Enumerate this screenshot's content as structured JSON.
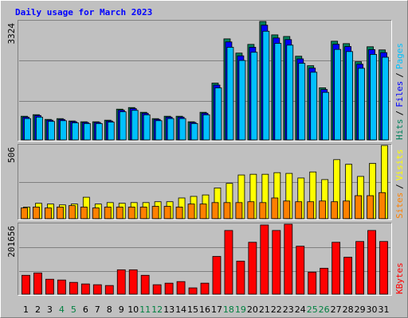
{
  "title": "Daily usage for March 2023",
  "legend_separator": "/",
  "chart_data": [
    {
      "type": "bar",
      "ylim": [
        0,
        3324
      ],
      "yticks": [
        3324
      ],
      "grid_divisions": 3,
      "series": [
        {
          "name": "Hits",
          "color": "#00805c",
          "values": [
            665,
            709,
            576,
            598,
            532,
            510,
            510,
            554,
            864,
            909,
            776,
            598,
            665,
            665,
            510,
            776,
            1595,
            2836,
            2437,
            2681,
            3324,
            2948,
            2903,
            2349,
            2083,
            1463,
            2770,
            2703,
            2194,
            2615,
            2526
          ]
        },
        {
          "name": "Files",
          "color": "#0000ff",
          "values": [
            640,
            685,
            555,
            575,
            512,
            490,
            490,
            532,
            835,
            880,
            748,
            575,
            640,
            640,
            490,
            748,
            1540,
            2750,
            2360,
            2600,
            3220,
            2860,
            2815,
            2275,
            2015,
            1415,
            2685,
            2620,
            2125,
            2535,
            2450
          ]
        },
        {
          "name": "Pages",
          "color": "#00c0ff",
          "values": [
            600,
            640,
            520,
            540,
            480,
            460,
            460,
            500,
            790,
            830,
            705,
            540,
            600,
            600,
            460,
            705,
            1460,
            2600,
            2230,
            2460,
            3050,
            2710,
            2660,
            2150,
            1900,
            1335,
            2540,
            2480,
            2010,
            2400,
            2320
          ]
        }
      ]
    },
    {
      "type": "bar",
      "ylim": [
        0,
        506
      ],
      "yticks": [
        506
      ],
      "grid_divisions": 2,
      "series": [
        {
          "name": "Sites",
          "color": "#ff8000",
          "values": [
            74,
            80,
            74,
            80,
            90,
            80,
            74,
            80,
            80,
            80,
            80,
            85,
            85,
            80,
            101,
            101,
            111,
            111,
            111,
            117,
            111,
            143,
            122,
            117,
            117,
            122,
            117,
            122,
            159,
            159,
            180
          ]
        },
        {
          "name": "Visits",
          "color": "#ffff00",
          "values": [
            80,
            106,
            101,
            95,
            101,
            148,
            101,
            111,
            106,
            111,
            111,
            117,
            117,
            143,
            154,
            164,
            212,
            244,
            302,
            307,
            307,
            318,
            313,
            281,
            323,
            270,
            408,
            376,
            292,
            382,
            506
          ]
        }
      ]
    },
    {
      "type": "bar",
      "ylim": [
        0,
        201656
      ],
      "yticks": [
        201656
      ],
      "grid_divisions": 3,
      "categories": [
        "1",
        "2",
        "3",
        "4",
        "5",
        "6",
        "7",
        "8",
        "9",
        "10",
        "11",
        "12",
        "13",
        "14",
        "15",
        "16",
        "17",
        "18",
        "19",
        "20",
        "21",
        "22",
        "23",
        "24",
        "25",
        "26",
        "27",
        "28",
        "29",
        "30",
        "31"
      ],
      "category_colors": [
        "#000000",
        "#000000",
        "#000000",
        "#008040",
        "#008040",
        "#000000",
        "#000000",
        "#000000",
        "#000000",
        "#000000",
        "#008040",
        "#008040",
        "#000000",
        "#000000",
        "#000000",
        "#000000",
        "#000000",
        "#008040",
        "#008040",
        "#000000",
        "#000000",
        "#000000",
        "#000000",
        "#000000",
        "#008040",
        "#008040",
        "#000000",
        "#000000",
        "#000000",
        "#000000",
        "#000000"
      ],
      "series": [
        {
          "name": "KBytes",
          "color": "#ff0000",
          "values": [
            54384,
            61182,
            43054,
            40788,
            33990,
            29458,
            27192,
            24926,
            70246,
            70246,
            54384,
            27192,
            31724,
            36256,
            18128,
            31724,
            108768,
            183546,
            95172,
            149556,
            199408,
            183546,
            201656,
            138226,
            63448,
            74778,
            149556,
            106502,
            151822,
            183546,
            151822
          ]
        }
      ]
    }
  ]
}
